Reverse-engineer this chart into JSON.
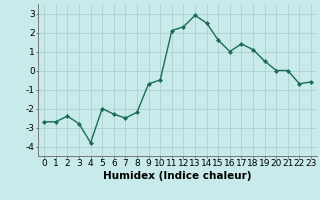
{
  "x": [
    0,
    1,
    2,
    3,
    4,
    5,
    6,
    7,
    8,
    9,
    10,
    11,
    12,
    13,
    14,
    15,
    16,
    17,
    18,
    19,
    20,
    21,
    22,
    23
  ],
  "y": [
    -2.7,
    -2.7,
    -2.4,
    -2.8,
    -3.8,
    -2.0,
    -2.3,
    -2.5,
    -2.2,
    -0.7,
    -0.5,
    2.1,
    2.3,
    2.9,
    2.5,
    1.6,
    1.0,
    1.4,
    1.1,
    0.5,
    0.0,
    0.0,
    -0.7,
    -0.6
  ],
  "line_color": "#1a6b5a",
  "marker": "D",
  "marker_size": 2.0,
  "bg_color": "#c8eaea",
  "grid_color": "#b0d0d0",
  "xlabel": "Humidex (Indice chaleur)",
  "xlabel_fontsize": 7.5,
  "xlim": [
    -0.5,
    23.5
  ],
  "ylim": [
    -4.5,
    3.5
  ],
  "yticks": [
    -4,
    -3,
    -2,
    -1,
    0,
    1,
    2,
    3
  ],
  "xticks": [
    0,
    1,
    2,
    3,
    4,
    5,
    6,
    7,
    8,
    9,
    10,
    11,
    12,
    13,
    14,
    15,
    16,
    17,
    18,
    19,
    20,
    21,
    22,
    23
  ],
  "tick_fontsize": 6.5,
  "linewidth": 1.0
}
